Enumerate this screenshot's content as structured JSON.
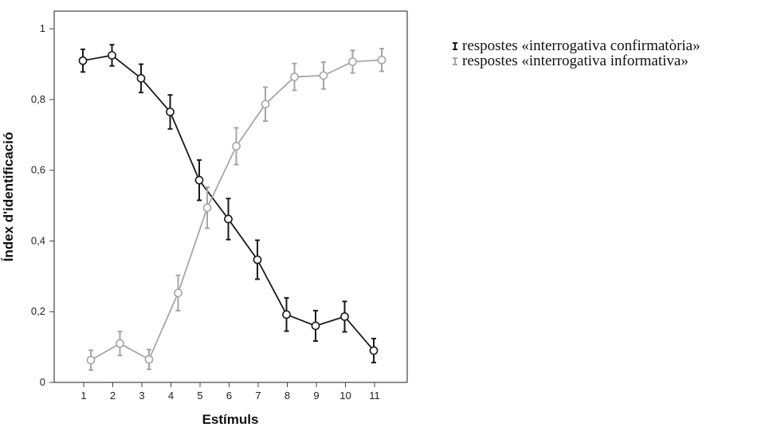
{
  "chart_data": {
    "type": "line",
    "title": "",
    "xlabel": "Estímuls",
    "ylabel": "Índex d'identificació",
    "ylim": [
      0,
      1.05
    ],
    "y_ticks": [
      "0",
      "0,2",
      "0,4",
      "0,6",
      "0,8",
      "1"
    ],
    "x": [
      1,
      2,
      3,
      4,
      5,
      6,
      7,
      8,
      9,
      10,
      11
    ],
    "x_ticks": [
      "1",
      "2",
      "3",
      "4",
      "5",
      "6",
      "7",
      "8",
      "9",
      "10",
      "11"
    ],
    "grid": false,
    "legend_position": "top-right outside",
    "series": [
      {
        "name": "respostes «interrogativa confirmatòria»",
        "color": "#1a1a1a",
        "values": [
          0.91,
          0.925,
          0.86,
          0.765,
          0.572,
          0.462,
          0.347,
          0.192,
          0.16,
          0.186,
          0.09
        ],
        "error": [
          0.032,
          0.03,
          0.04,
          0.048,
          0.057,
          0.058,
          0.055,
          0.047,
          0.043,
          0.043,
          0.034
        ]
      },
      {
        "name": "respostes «interrogativa informativa»",
        "color": "#a6a6a6",
        "values": [
          0.063,
          0.11,
          0.065,
          0.253,
          0.494,
          0.668,
          0.787,
          0.864,
          0.868,
          0.907,
          0.912
        ],
        "error": [
          0.028,
          0.034,
          0.028,
          0.05,
          0.058,
          0.052,
          0.048,
          0.038,
          0.038,
          0.032,
          0.032
        ]
      }
    ]
  }
}
